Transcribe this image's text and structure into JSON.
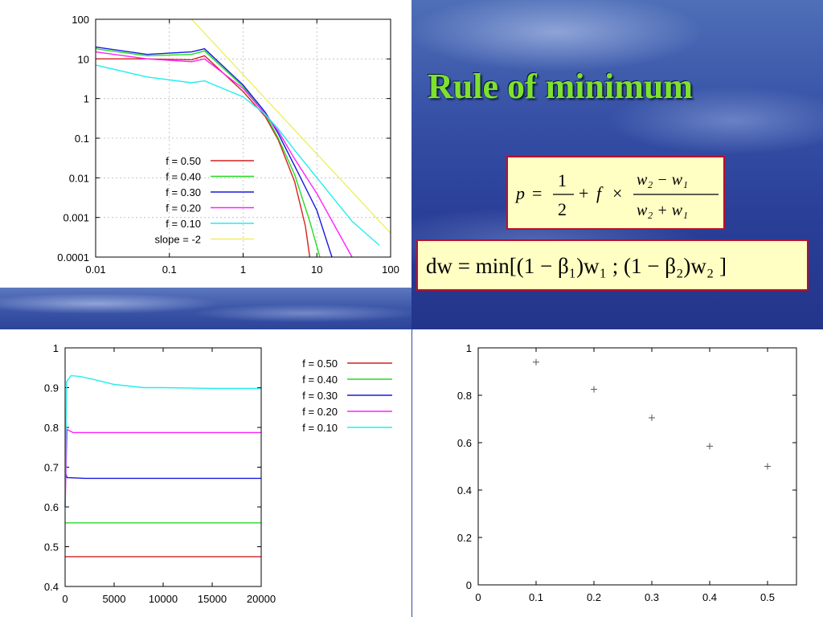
{
  "slide": {
    "title": "Rule of minimum",
    "formula_p": {
      "lhs": "p",
      "eq": "=",
      "half_num": "1",
      "half_den": "2",
      "plus": "+",
      "f": "f",
      "times": "×",
      "num": "w₂ − w₁",
      "den": "w₂ + w₁"
    },
    "formula_dw": "dw = min[(1 − β₁)w₁ ; (1 − β₂)w₂ ]"
  },
  "colors": {
    "f050": "#d62020",
    "f040": "#22dd22",
    "f030": "#1a1ae0",
    "f020": "#ff22ff",
    "f010": "#22eeee",
    "slope": "#eeee66"
  },
  "chart_data": [
    {
      "type": "line",
      "scale": "log-log",
      "xlim": [
        0.01,
        100
      ],
      "ylim": [
        0.0001,
        100
      ],
      "xticks": [
        "0.01",
        "0.1",
        "1",
        "10",
        "100"
      ],
      "yticks": [
        "0.0001",
        "0.001",
        "0.01",
        "0.1",
        "1",
        "10",
        "100"
      ],
      "grid": true,
      "legend": "center",
      "series": [
        {
          "name": "f = 0.50",
          "color_key": "f050",
          "x": [
            0.01,
            0.05,
            0.2,
            0.3,
            1,
            2,
            3,
            5,
            7,
            8
          ],
          "y": [
            10,
            10,
            9.5,
            12,
            1.5,
            0.35,
            0.09,
            0.008,
            0.0006,
            0.0001
          ]
        },
        {
          "name": "f = 0.40",
          "color_key": "f040",
          "x": [
            0.01,
            0.05,
            0.2,
            0.3,
            1,
            2,
            3,
            5,
            8,
            11
          ],
          "y": [
            18,
            12,
            13,
            16,
            2,
            0.4,
            0.1,
            0.012,
            0.0008,
            0.0001
          ]
        },
        {
          "name": "f = 0.30",
          "color_key": "f030",
          "x": [
            0.01,
            0.05,
            0.2,
            0.3,
            1,
            2,
            3,
            5,
            10,
            16
          ],
          "y": [
            20,
            13,
            15,
            18,
            2.2,
            0.45,
            0.13,
            0.02,
            0.0015,
            0.0001
          ]
        },
        {
          "name": "f = 0.20",
          "color_key": "f020",
          "x": [
            0.01,
            0.05,
            0.2,
            0.3,
            1,
            2,
            3,
            5,
            10,
            30
          ],
          "y": [
            15,
            10,
            8.5,
            10,
            1.8,
            0.4,
            0.15,
            0.03,
            0.004,
            0.0001
          ]
        },
        {
          "name": "f = 0.10",
          "color_key": "f010",
          "x": [
            0.01,
            0.05,
            0.2,
            0.3,
            1,
            2,
            3,
            5,
            10,
            30,
            70
          ],
          "y": [
            7,
            3.5,
            2.5,
            2.8,
            1.1,
            0.4,
            0.17,
            0.05,
            0.01,
            0.0008,
            0.0002
          ]
        },
        {
          "name": "slope = -2",
          "color_key": "slope",
          "x": [
            0.2,
            100
          ],
          "y": [
            100,
            0.0004
          ]
        }
      ]
    },
    {
      "type": "line",
      "xlim": [
        0,
        20000
      ],
      "ylim": [
        0.4,
        1
      ],
      "xticks": [
        "0",
        "5000",
        "10000",
        "15000",
        "20000"
      ],
      "yticks": [
        "0.4",
        "0.5",
        "0.6",
        "0.7",
        "0.8",
        "0.9",
        "1"
      ],
      "grid": false,
      "legend": "top-right",
      "series": [
        {
          "name": "f = 0.50",
          "color_key": "f050",
          "x": [
            0,
            200,
            20000
          ],
          "y": [
            0.475,
            0.475,
            0.475
          ]
        },
        {
          "name": "f = 0.40",
          "color_key": "f040",
          "x": [
            0,
            200,
            20000
          ],
          "y": [
            0.56,
            0.56,
            0.56
          ]
        },
        {
          "name": "f = 0.30",
          "color_key": "f030",
          "x": [
            0,
            200,
            2000,
            20000
          ],
          "y": [
            0.69,
            0.674,
            0.672,
            0.672
          ]
        },
        {
          "name": "f = 0.20",
          "color_key": "f020",
          "x": [
            0,
            200,
            800,
            20000
          ],
          "y": [
            0.6,
            0.795,
            0.787,
            0.787
          ]
        },
        {
          "name": "f = 0.10",
          "color_key": "f010",
          "x": [
            0,
            150,
            600,
            1500,
            3000,
            5000,
            8000,
            10000,
            15000,
            20000
          ],
          "y": [
            0.6,
            0.915,
            0.93,
            0.928,
            0.92,
            0.908,
            0.9,
            0.9,
            0.898,
            0.898
          ]
        }
      ]
    },
    {
      "type": "scatter",
      "xlim": [
        0,
        0.55
      ],
      "ylim": [
        0,
        1
      ],
      "xticks": [
        "0",
        "0.1",
        "0.2",
        "0.3",
        "0.4",
        "0.5"
      ],
      "yticks": [
        "0",
        "0.2",
        "0.4",
        "0.6",
        "0.8",
        "1"
      ],
      "grid": false,
      "series": [
        {
          "x": [
            0.1,
            0.2,
            0.3,
            0.4,
            0.5
          ],
          "y": [
            0.94,
            0.825,
            0.705,
            0.585,
            0.5
          ]
        }
      ]
    }
  ]
}
